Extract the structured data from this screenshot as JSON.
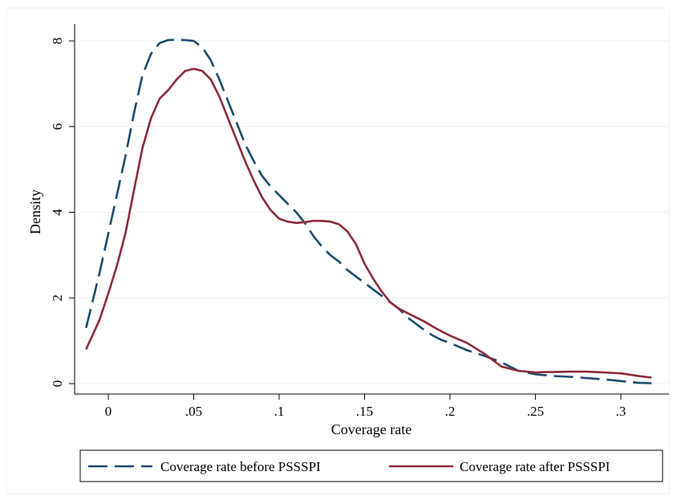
{
  "chart_data": {
    "type": "line",
    "title": "",
    "xlabel": "Coverage rate",
    "ylabel": "Density",
    "xlim": [
      -0.015,
      0.32
    ],
    "ylim": [
      0,
      8.2
    ],
    "xticks": [
      0,
      0.05,
      0.1,
      0.15,
      0.2,
      0.25,
      0.3
    ],
    "xtick_labels": [
      "0",
      ".05",
      ".1",
      ".15",
      ".2",
      ".25",
      ".3"
    ],
    "yticks": [
      0,
      2,
      4,
      6,
      8
    ],
    "ytick_labels": [
      "0",
      "2",
      "4",
      "6",
      "8"
    ],
    "grid": true,
    "legend_position": "bottom",
    "series": [
      {
        "name": "Coverage rate before PSSSPI",
        "color": "#1a4a6b",
        "dash": "dashed",
        "x": [
          -0.013,
          -0.005,
          0.0,
          0.005,
          0.01,
          0.015,
          0.02,
          0.025,
          0.03,
          0.035,
          0.04,
          0.045,
          0.05,
          0.055,
          0.06,
          0.065,
          0.07,
          0.075,
          0.08,
          0.085,
          0.09,
          0.095,
          0.1,
          0.105,
          0.11,
          0.115,
          0.12,
          0.125,
          0.13,
          0.135,
          0.14,
          0.145,
          0.15,
          0.155,
          0.16,
          0.165,
          0.17,
          0.175,
          0.18,
          0.185,
          0.19,
          0.195,
          0.2,
          0.21,
          0.22,
          0.23,
          0.24,
          0.25,
          0.26,
          0.27,
          0.28,
          0.29,
          0.3,
          0.31,
          0.318
        ],
        "y": [
          1.3,
          2.6,
          3.5,
          4.4,
          5.3,
          6.3,
          7.2,
          7.7,
          7.95,
          8.02,
          8.03,
          8.02,
          8.0,
          7.85,
          7.55,
          7.1,
          6.6,
          6.1,
          5.6,
          5.2,
          4.85,
          4.6,
          4.4,
          4.2,
          4.0,
          3.75,
          3.45,
          3.2,
          3.0,
          2.85,
          2.65,
          2.5,
          2.35,
          2.2,
          2.05,
          1.9,
          1.75,
          1.55,
          1.4,
          1.25,
          1.12,
          1.02,
          0.95,
          0.78,
          0.65,
          0.5,
          0.3,
          0.22,
          0.18,
          0.16,
          0.13,
          0.1,
          0.06,
          0.02,
          0.01
        ]
      },
      {
        "name": "Coverage rate after PSSSPI",
        "color": "#8b2a3a",
        "dash": "solid",
        "x": [
          -0.013,
          -0.005,
          0.0,
          0.005,
          0.01,
          0.015,
          0.02,
          0.025,
          0.03,
          0.035,
          0.04,
          0.045,
          0.05,
          0.055,
          0.06,
          0.065,
          0.07,
          0.075,
          0.08,
          0.085,
          0.09,
          0.095,
          0.1,
          0.105,
          0.11,
          0.115,
          0.12,
          0.125,
          0.13,
          0.135,
          0.14,
          0.145,
          0.15,
          0.155,
          0.16,
          0.165,
          0.17,
          0.175,
          0.18,
          0.185,
          0.19,
          0.195,
          0.2,
          0.21,
          0.22,
          0.23,
          0.24,
          0.25,
          0.255,
          0.26,
          0.27,
          0.28,
          0.29,
          0.3,
          0.31,
          0.318
        ],
        "y": [
          0.8,
          1.5,
          2.1,
          2.75,
          3.5,
          4.5,
          5.5,
          6.2,
          6.65,
          6.85,
          7.1,
          7.3,
          7.35,
          7.3,
          7.1,
          6.7,
          6.2,
          5.7,
          5.2,
          4.75,
          4.35,
          4.05,
          3.85,
          3.78,
          3.75,
          3.77,
          3.8,
          3.8,
          3.78,
          3.72,
          3.55,
          3.25,
          2.8,
          2.45,
          2.15,
          1.9,
          1.75,
          1.65,
          1.55,
          1.45,
          1.33,
          1.22,
          1.12,
          0.95,
          0.7,
          0.4,
          0.3,
          0.26,
          0.27,
          0.27,
          0.28,
          0.28,
          0.26,
          0.24,
          0.18,
          0.14
        ]
      }
    ]
  }
}
